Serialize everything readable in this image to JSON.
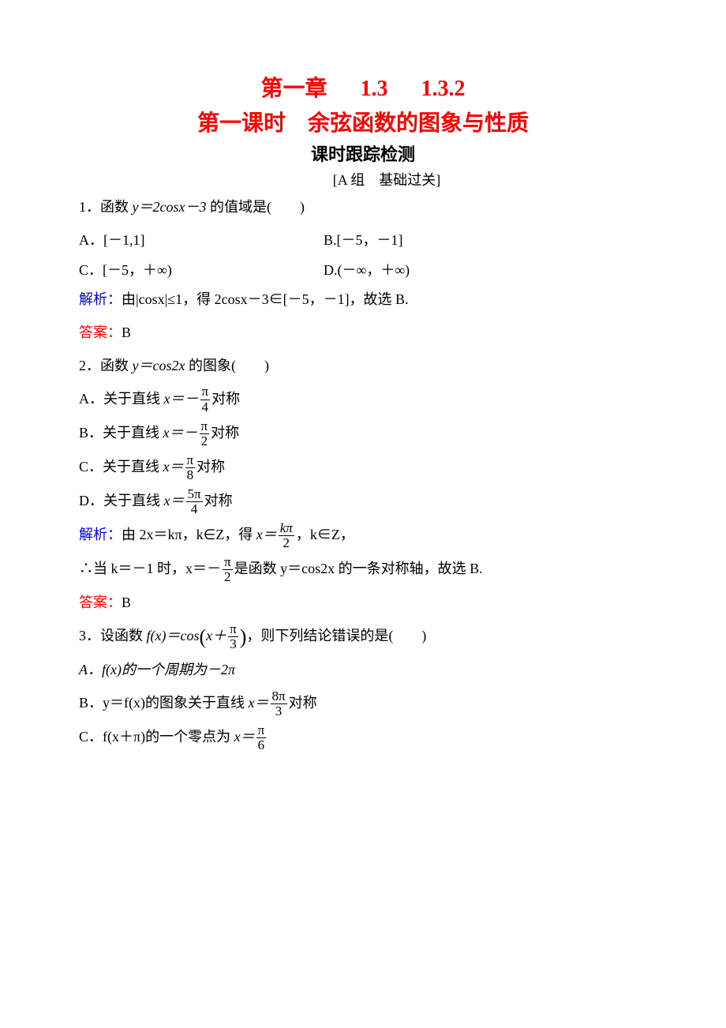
{
  "titles": {
    "chapter_prefix": "第一章",
    "section_num": "1.3",
    "subsection_num": "1.3.2",
    "lesson_title": "第一课时　余弦函数的图象与性质",
    "tracking_title": "课时跟踪检测",
    "group_label": "[A 组　基础过关]"
  },
  "colors": {
    "accent_red": "#ff0000",
    "accent_blue": "#0000ff",
    "text": "#000000",
    "background": "#ffffff"
  },
  "q1": {
    "stem_prefix": "1．函数 ",
    "stem_expr": "y＝2cosx－3",
    "stem_suffix": " 的值域是(　　)",
    "optA": "A．[－1,1]",
    "optB": "B.[－5，－1]",
    "optC": "C．[－5，＋∞)",
    "optD": "D.(－∞，＋∞)",
    "analysis_label": "解析：",
    "analysis_text": "由|cosx|≤1，得 2cosx－3∈[－5，－1]，故选 B.",
    "answer_label": "答案：",
    "answer_value": "B"
  },
  "q2": {
    "stem_prefix": "2．函数 ",
    "stem_expr": "y＝cos2x",
    "stem_suffix": " 的图象(　　)",
    "optA_prefix": "A．关于直线 ",
    "optA_x": "x＝－",
    "optA_num": "π",
    "optA_den": "4",
    "optA_suffix": "对称",
    "optB_prefix": "B．关于直线 ",
    "optB_x": "x＝－",
    "optB_num": "π",
    "optB_den": "2",
    "optB_suffix": "对称",
    "optC_prefix": "C．关于直线 ",
    "optC_x": "x＝",
    "optC_num": "π",
    "optC_den": "8",
    "optC_suffix": "对称",
    "optD_prefix": "D．关于直线 ",
    "optD_x": "x＝",
    "optD_num": "5π",
    "optD_den": "4",
    "optD_suffix": "对称",
    "analysis_label": "解析：",
    "analysis_l1a": "由 2x＝kπ，k∈Z，得 ",
    "analysis_l1b": "x＝",
    "analysis_l1_num": "kπ",
    "analysis_l1_den": "2",
    "analysis_l1c": "，k∈Z，",
    "analysis_l2a": "∴当 k＝－1 时，x＝－",
    "analysis_l2_num": "π",
    "analysis_l2_den": "2",
    "analysis_l2b": "是函数 y＝cos2x 的一条对称轴，故选 B.",
    "answer_label": "答案：",
    "answer_value": "B"
  },
  "q3": {
    "stem_prefix": "3．设函数 ",
    "stem_f": "f(x)＝cos",
    "stem_inner_a": "x＋",
    "stem_inner_num": "π",
    "stem_inner_den": "3",
    "stem_suffix": "，则下列结论错误的是(　　)",
    "optA": "A．f(x)的一个周期为－2π",
    "optB_prefix": "B．y＝f(x)的图象关于直线 ",
    "optB_x": "x＝",
    "optB_num": "8π",
    "optB_den": "3",
    "optB_suffix": "对称",
    "optC_prefix": "C．f(x＋π)的一个零点为 ",
    "optC_x": "x＝",
    "optC_num": "π",
    "optC_den": "6"
  }
}
